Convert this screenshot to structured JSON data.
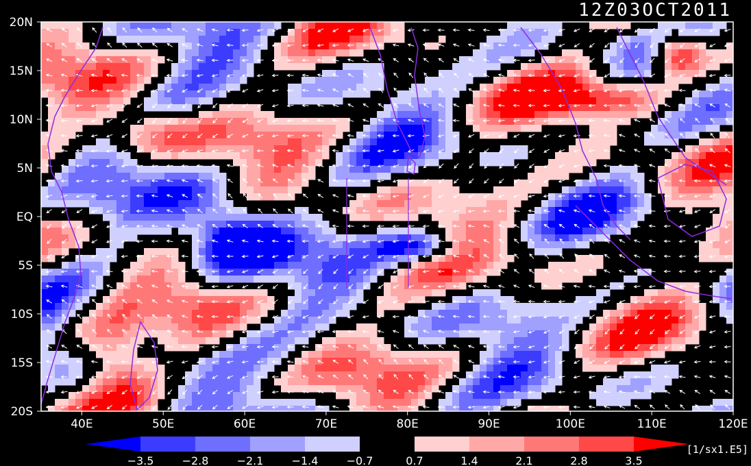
{
  "title": "12Z03OCT2011",
  "map": {
    "lat_ticks": [
      "20N",
      "15N",
      "10N",
      "5N",
      "EQ",
      "5S",
      "10S",
      "15S",
      "20S"
    ],
    "lon_ticks": [
      "40E",
      "50E",
      "60E",
      "70E",
      "80E",
      "90E",
      "100E",
      "110E",
      "120E"
    ],
    "lon_range": [
      35,
      120
    ],
    "lat_range": [
      -20,
      20
    ],
    "background": "#000000",
    "vector_color": "#ffffff",
    "coast_color": "#8a2be2"
  },
  "colorbar": {
    "colors": [
      "#0000ff",
      "#3c3cff",
      "#6e6eff",
      "#a0a0ff",
      "#d0d0ff",
      "#000000",
      "#ffd0d0",
      "#ffa8a8",
      "#ff7878",
      "#ff4848",
      "#ff0000"
    ],
    "labels": [
      "−3.5",
      "−2.8",
      "−2.1",
      "−1.4",
      "−0.7",
      "0.7",
      "1.4",
      "2.1",
      "2.8",
      "3.5"
    ],
    "units": "[1/sx1.E5]"
  },
  "shading_levels": [
    -3.5,
    -2.8,
    -2.1,
    -1.4,
    -0.7,
    0.7,
    1.4,
    2.1,
    2.8,
    3.5
  ]
}
